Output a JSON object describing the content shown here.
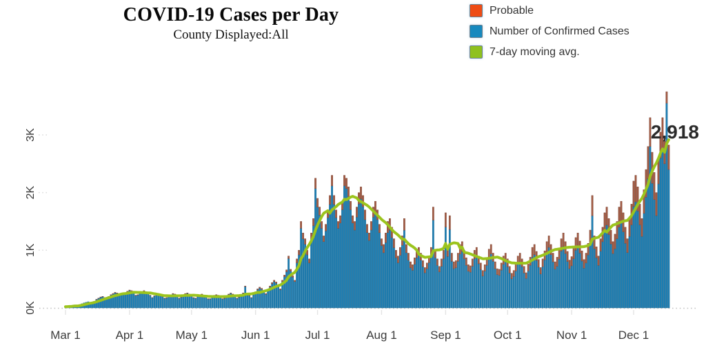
{
  "title": "COVID-19 Cases per Day",
  "subtitle": "County Displayed:All",
  "legend": {
    "items": [
      {
        "label": "Probable",
        "color": "#EE4C15"
      },
      {
        "label": "Number of Confirmed Cases",
        "color": "#1789BE"
      },
      {
        "label": "7-day moving avg.",
        "color": "#8FC11E"
      }
    ]
  },
  "annotation": {
    "label": "2,918",
    "value": 2918
  },
  "chart_data": {
    "type": "bar",
    "stacked": true,
    "overlay_line": "7-day moving avg.",
    "title": "COVID-19 Cases per Day",
    "xlabel": "",
    "ylabel": "",
    "x_tick_labels": [
      "Mar 1",
      "Apr 1",
      "May 1",
      "Jun 1",
      "Jul 1",
      "Aug 1",
      "Sep 1",
      "Oct 1",
      "Nov 1",
      "Dec 1"
    ],
    "x_tick_days": [
      0,
      31,
      61,
      92,
      122,
      153,
      184,
      214,
      245,
      275
    ],
    "y_tick_labels": [
      "0K",
      "1K",
      "2K",
      "3K"
    ],
    "y_tick_values": [
      0,
      1000,
      2000,
      3000
    ],
    "ylim": [
      0,
      3800
    ],
    "start_label": "Mar 1",
    "days": 293,
    "last_avg_value": 2918,
    "colors": {
      "confirmed_bar": "#1E7FB4",
      "confirmed_bar_edge": "#14628C",
      "probable_bar": "#A35B44",
      "probable_bar_edge": "#7B4534",
      "avg_line": "#9CC41E",
      "axis_text": "#3b3b3b",
      "annotation_text": "#2b2b2b",
      "dotted_gridline": "#c2c2c2"
    },
    "series": [
      {
        "name": "Number of Confirmed Cases",
        "values": [
          19,
          24,
          29,
          34,
          48,
          44,
          39,
          58,
          73,
          87,
          97,
          107,
          92,
          78,
          116,
          145,
          165,
          184,
          194,
          175,
          155,
          194,
          223,
          242,
          262,
          252,
          233,
          223,
          233,
          252,
          281,
          301,
          291,
          262,
          213,
          223,
          252,
          272,
          291,
          272,
          242,
          213,
          175,
          204,
          233,
          242,
          223,
          194,
          165,
          175,
          194,
          223,
          242,
          233,
          194,
          165,
          184,
          213,
          242,
          252,
          233,
          204,
          175,
          165,
          194,
          213,
          233,
          213,
          184,
          155,
          155,
          184,
          213,
          223,
          213,
          184,
          155,
          165,
          194,
          233,
          252,
          233,
          194,
          165,
          184,
          213,
          252,
          369,
          252,
          213,
          175,
          228,
          266,
          313,
          342,
          323,
          275,
          237,
          304,
          361,
          418,
          456,
          427,
          361,
          313,
          456,
          541,
          627,
          855,
          636,
          532,
          456,
          782,
          920,
          1380,
          1196,
          1104,
          920,
          782,
          1196,
          1426,
          2070,
          1748,
          1610,
          1380,
          1150,
          1334,
          1564,
          1794,
          2116,
          1794,
          1564,
          1380,
          1472,
          1702,
          2116,
          2070,
          1932,
          1702,
          1472,
          1350,
          1575,
          1800,
          1890,
          1755,
          1530,
          1305,
          1170,
          1350,
          1575,
          1665,
          1530,
          1305,
          1080,
          957,
          1131,
          1305,
          1348,
          1218,
          1044,
          870,
          783,
          913,
          1087,
          1348,
          957,
          826,
          696,
          652,
          757,
          870,
          913,
          826,
          713,
          609,
          679,
          783,
          913,
          1522,
          870,
          739,
          626,
          722,
          850,
          1402,
          892,
          1360,
          807,
          680,
          697,
          807,
          935,
          977,
          850,
          739,
          637,
          620,
          722,
          850,
          892,
          765,
          663,
          552,
          637,
          739,
          867,
          935,
          807,
          680,
          578,
          563,
          655,
          756,
          798,
          714,
          605,
          504,
          546,
          638,
          756,
          798,
          714,
          605,
          512,
          638,
          739,
          882,
          924,
          823,
          706,
          588,
          714,
          832,
          966,
          1050,
          924,
          798,
          672,
          722,
          845,
          984,
          1066,
          943,
          804,
          681,
          730,
          853,
          1000,
          1066,
          951,
          812,
          689,
          779,
          918,
          1107,
          1599,
          1025,
          869,
          738,
          984,
          1148,
          1353,
          1435,
          1271,
          1107,
          943,
          1024,
          1200,
          1400,
          1480,
          1320,
          1120,
          960,
          1240,
          1440,
          1760,
          1840,
          1680,
          1440,
          1240,
          1640,
          1920,
          2240,
          2800,
          2160,
          1880,
          1600,
          2150,
          2600,
          2750,
          2500,
          3550,
          2400
        ]
      },
      {
        "name": "Probable",
        "values": [
          1,
          1,
          1,
          1,
          2,
          1,
          1,
          2,
          2,
          3,
          3,
          3,
          3,
          2,
          4,
          5,
          5,
          6,
          6,
          5,
          5,
          6,
          7,
          8,
          8,
          8,
          7,
          7,
          7,
          8,
          9,
          9,
          9,
          8,
          7,
          7,
          8,
          8,
          9,
          8,
          8,
          7,
          5,
          6,
          7,
          8,
          7,
          6,
          5,
          5,
          6,
          7,
          8,
          7,
          6,
          5,
          6,
          7,
          8,
          8,
          7,
          6,
          5,
          5,
          6,
          7,
          7,
          7,
          6,
          5,
          5,
          6,
          7,
          7,
          7,
          6,
          5,
          5,
          6,
          7,
          8,
          7,
          6,
          5,
          6,
          7,
          8,
          11,
          8,
          7,
          5,
          12,
          14,
          17,
          18,
          17,
          15,
          13,
          16,
          19,
          22,
          24,
          23,
          19,
          17,
          24,
          29,
          33,
          45,
          34,
          28,
          24,
          68,
          80,
          120,
          104,
          96,
          80,
          68,
          104,
          124,
          180,
          152,
          140,
          120,
          100,
          116,
          136,
          156,
          184,
          156,
          136,
          120,
          128,
          148,
          184,
          180,
          168,
          148,
          128,
          150,
          175,
          200,
          210,
          195,
          170,
          145,
          130,
          150,
          175,
          185,
          170,
          145,
          120,
          143,
          169,
          195,
          202,
          182,
          156,
          130,
          117,
          137,
          163,
          202,
          143,
          124,
          104,
          98,
          113,
          130,
          137,
          124,
          107,
          91,
          101,
          117,
          137,
          228,
          130,
          111,
          94,
          128,
          150,
          248,
          158,
          240,
          143,
          120,
          123,
          143,
          165,
          173,
          150,
          131,
          113,
          110,
          128,
          150,
          158,
          135,
          117,
          98,
          113,
          131,
          153,
          165,
          143,
          120,
          102,
          107,
          125,
          144,
          152,
          136,
          115,
          96,
          104,
          122,
          144,
          152,
          136,
          115,
          98,
          122,
          141,
          168,
          176,
          157,
          134,
          112,
          136,
          158,
          184,
          200,
          176,
          152,
          128,
          158,
          185,
          216,
          234,
          207,
          176,
          149,
          160,
          187,
          220,
          234,
          209,
          178,
          151,
          171,
          202,
          243,
          351,
          225,
          191,
          162,
          216,
          252,
          297,
          315,
          279,
          243,
          207,
          256,
          300,
          350,
          370,
          330,
          280,
          240,
          310,
          360,
          440,
          460,
          420,
          360,
          310,
          410,
          480,
          560,
          500,
          540,
          470,
          400,
          450,
          450,
          550,
          400,
          200,
          426
        ]
      }
    ]
  }
}
